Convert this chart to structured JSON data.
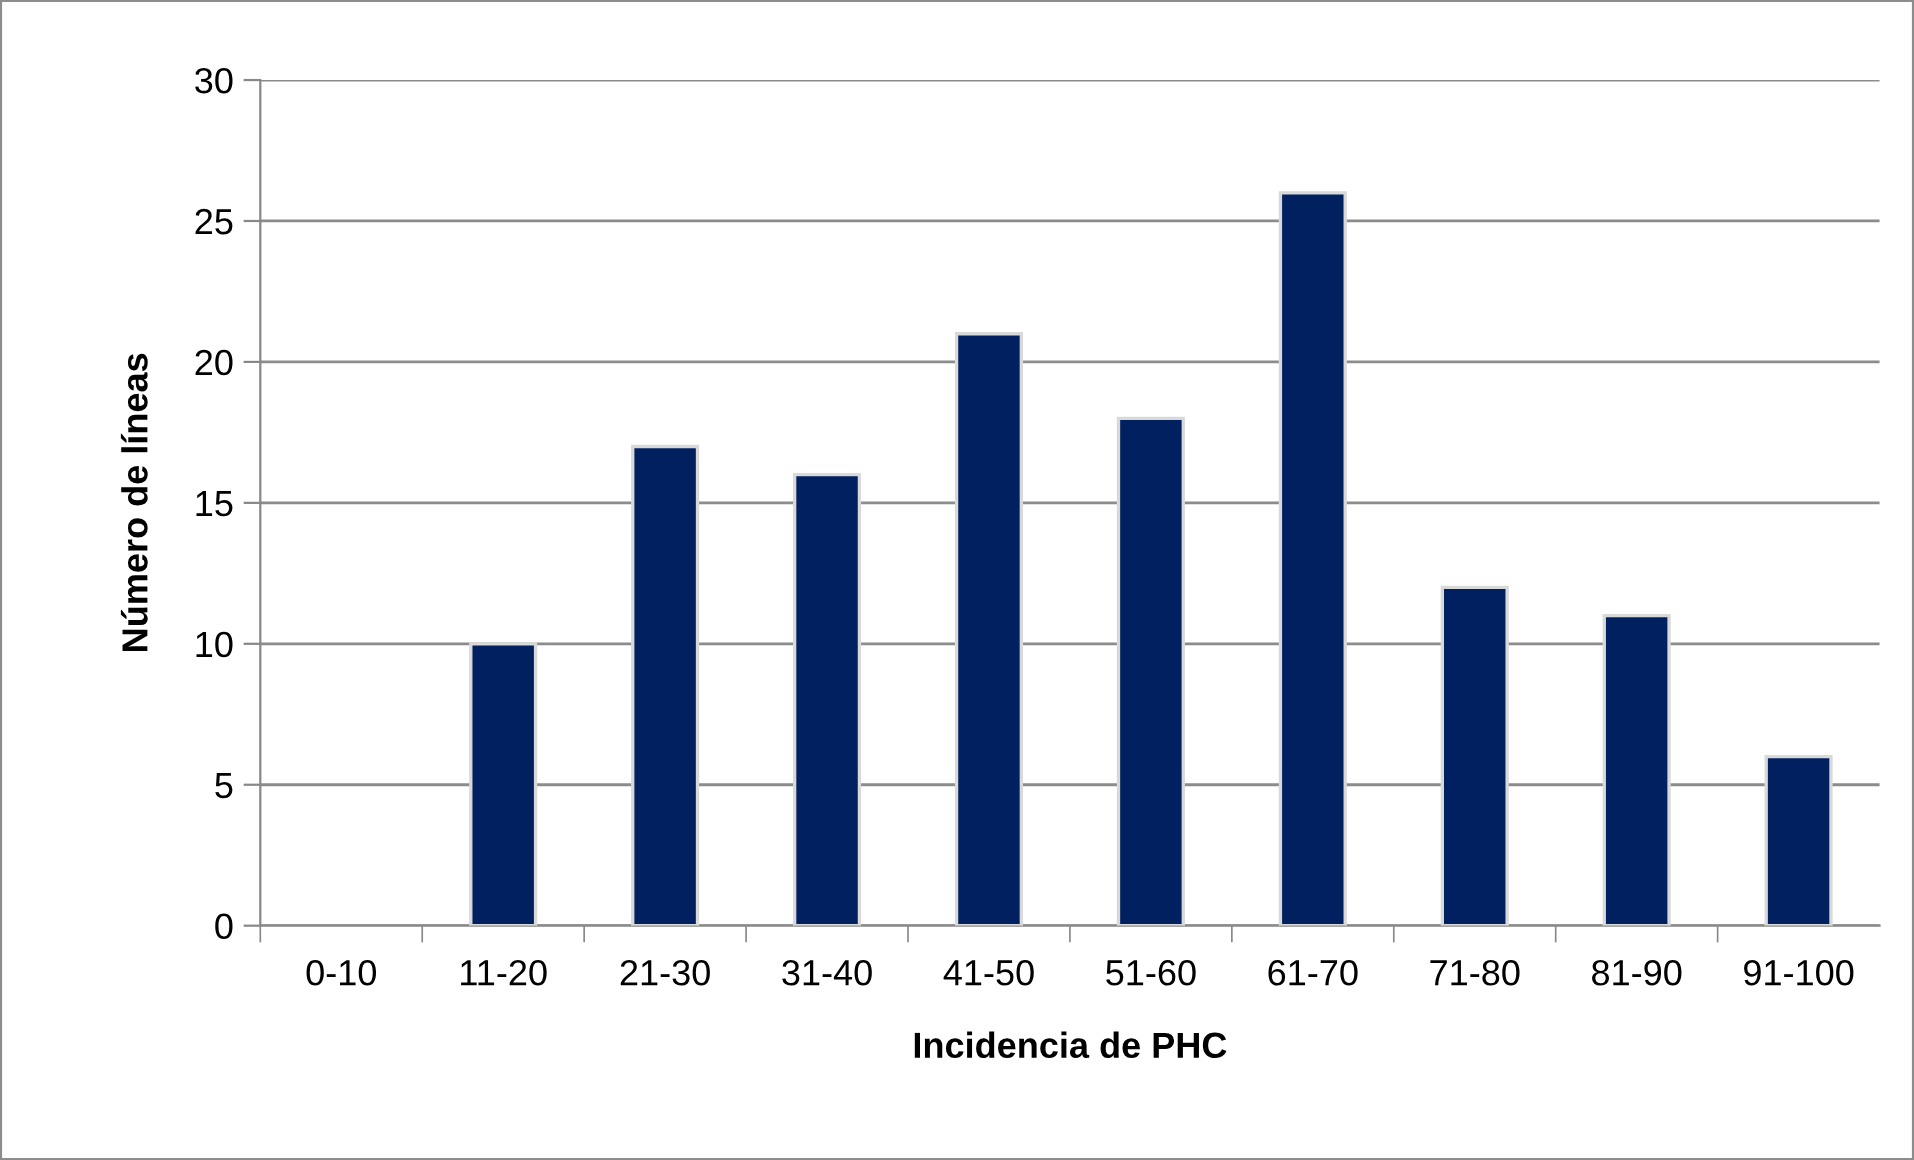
{
  "chart_data": {
    "type": "bar",
    "xlabel": "Incidencia de PHC",
    "ylabel": "Número de líneas",
    "categories": [
      "0-10",
      "11-20",
      "21-30",
      "31-40",
      "41-50",
      "51-60",
      "61-70",
      "71-80",
      "81-90",
      "91-100"
    ],
    "values": [
      0,
      10,
      17,
      16,
      21,
      18,
      26,
      12,
      11,
      6
    ],
    "color": "#002060",
    "ylim": [
      0,
      30
    ],
    "yticks": [
      0,
      5,
      10,
      15,
      20,
      25,
      30
    ],
    "grid": "y"
  }
}
